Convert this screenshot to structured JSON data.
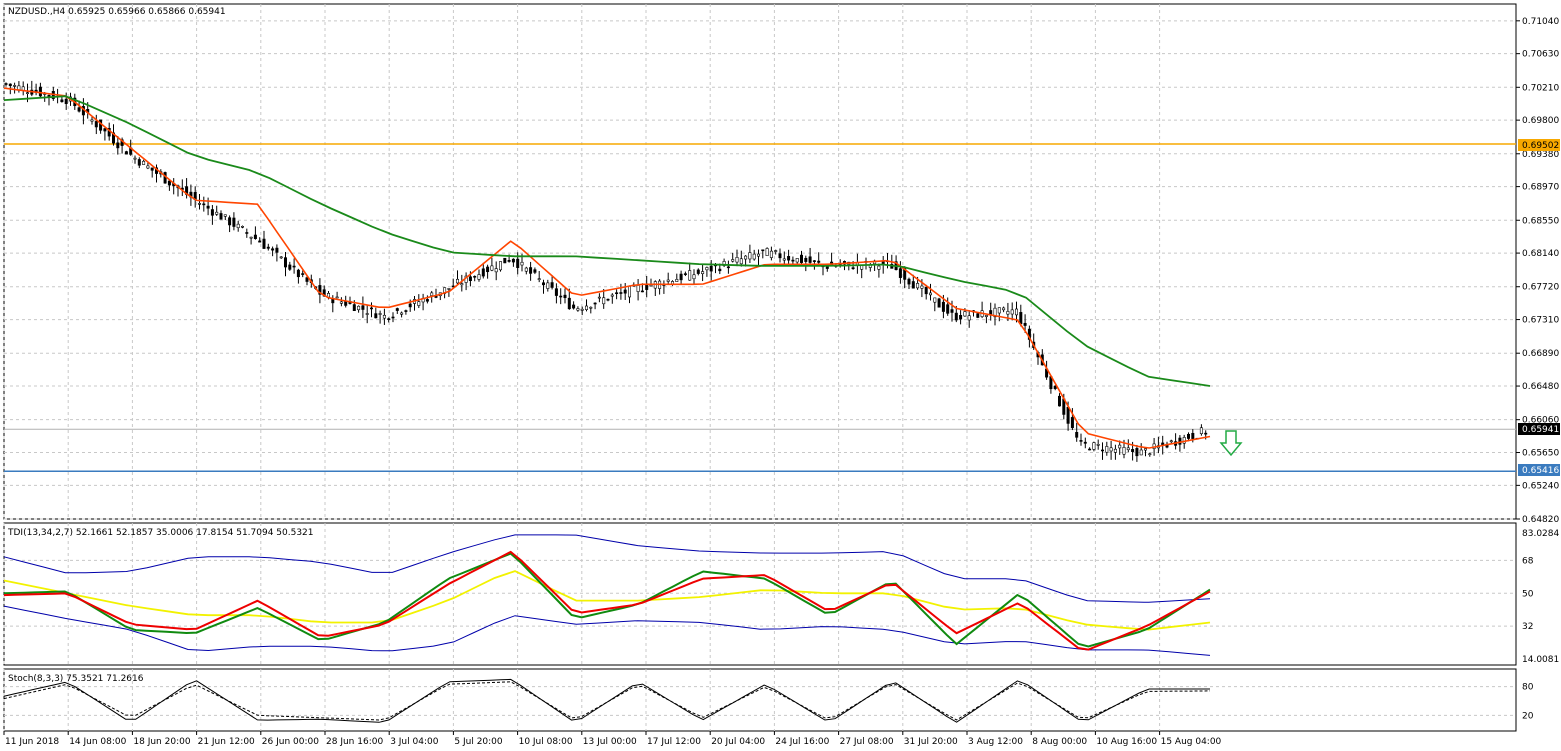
{
  "main_panel": {
    "title": "NZDUSD.,H4  0.65925 0.65966 0.65866 0.65941",
    "price_labels": [
      "0.71040",
      "0.70630",
      "0.70210",
      "0.69800",
      "0.69380",
      "0.68970",
      "0.68550",
      "0.68140",
      "0.67720",
      "0.67310",
      "0.66890",
      "0.66480",
      "0.66060",
      "0.65650",
      "0.65240",
      "0.64820"
    ],
    "tag_gold": "0.69502",
    "tag_current": "0.65941",
    "tag_blue": "0.65416"
  },
  "tdi_panel": {
    "title": "TDI(13,34,2,7) 52.1661 52.1857 35.0006 17.8154 51.7094 50.5321",
    "labels": [
      "83.0284",
      "68",
      "50",
      "32",
      "14.0081"
    ]
  },
  "stoch_panel": {
    "title": "Stoch(8,3,3) 75.3521 71.2616",
    "labels": [
      "80",
      "20"
    ]
  },
  "time_axis": [
    "11 Jun 2018",
    "14 Jun 08:00",
    "18 Jun 20:00",
    "21 Jun 12:00",
    "26 Jun 00:00",
    "28 Jun 16:00",
    "3 Jul 04:00",
    "5 Jul 20:00",
    "10 Jul 08:00",
    "13 Jul 00:00",
    "17 Jul 12:00",
    "20 Jul 04:00",
    "24 Jul 16:00",
    "27 Jul 08:00",
    "31 Jul 20:00",
    "3 Aug 12:00",
    "8 Aug 00:00",
    "10 Aug 16:00",
    "15 Aug 04:00"
  ],
  "colors": {
    "gold_line": "#f7a800",
    "blue_line": "#3a7bbf",
    "fast_ma": "#ff4500",
    "slow_ma": "#1a8a1a",
    "tdi_green": "#108a10",
    "tdi_red": "#ee0000",
    "tdi_yellow": "#f2f200",
    "tdi_band": "#0000aa",
    "down_arrow": "#22aa44"
  },
  "chart_data": [
    {
      "type": "line",
      "title": "NZDUSD.,H4",
      "ylim": [
        0.6482,
        0.7125
      ],
      "x": [
        "11 Jun 2018",
        "14 Jun 08:00",
        "18 Jun 20:00",
        "21 Jun 12:00",
        "26 Jun 00:00",
        "28 Jun 16:00",
        "3 Jul 04:00",
        "5 Jul 20:00",
        "10 Jul 08:00",
        "13 Jul 00:00",
        "17 Jul 12:00",
        "20 Jul 04:00",
        "24 Jul 16:00",
        "27 Jul 08:00",
        "31 Jul 20:00",
        "3 Aug 12:00",
        "8 Aug 00:00",
        "10 Aug 16:00",
        "15 Aug 04:00",
        "16 Aug"
      ],
      "series": [
        {
          "values": [
            0.7025,
            0.7005,
            0.6935,
            0.688,
            0.683,
            0.6762,
            0.6735,
            0.677,
            0.6808,
            0.6745,
            0.677,
            0.679,
            0.6815,
            0.6798,
            0.68,
            0.6735,
            0.6742,
            0.6575,
            0.6565,
            0.6592
          ]
        },
        {
          "values": [
            0.702,
            0.701,
            0.6945,
            0.688,
            0.6875,
            0.676,
            0.6745,
            0.6765,
            0.683,
            0.676,
            0.6775,
            0.6775,
            0.68,
            0.68,
            0.6805,
            0.6745,
            0.673,
            0.659,
            0.657,
            0.6585
          ]
        },
        {
          "values": [
            0.7005,
            0.701,
            0.6975,
            0.6935,
            0.6915,
            0.6875,
            0.684,
            0.6815,
            0.681,
            0.681,
            0.6805,
            0.68,
            0.6798,
            0.6798,
            0.68,
            0.678,
            0.6765,
            0.67,
            0.666,
            0.6648
          ]
        }
      ],
      "hlines": [
        0.69502,
        0.65416
      ],
      "current_price": 0.65941
    },
    {
      "type": "line",
      "title": "TDI(13,34,2,7)",
      "ylim": [
        14.0081,
        83.0284
      ],
      "x": [
        "11 Jun 2018",
        "14 Jun 08:00",
        "18 Jun 20:00",
        "21 Jun 12:00",
        "26 Jun 00:00",
        "28 Jun 16:00",
        "3 Jul 04:00",
        "5 Jul 20:00",
        "10 Jul 08:00",
        "13 Jul 00:00",
        "17 Jul 12:00",
        "20 Jul 04:00",
        "24 Jul 16:00",
        "27 Jul 08:00",
        "31 Jul 20:00",
        "3 Aug 12:00",
        "8 Aug 00:00",
        "10 Aug 16:00",
        "15 Aug 04:00",
        "16 Aug"
      ],
      "series": [
        {
          "values": [
            50,
            51,
            30,
            28,
            42,
            24,
            34,
            58,
            72,
            36,
            44,
            62,
            58,
            38,
            57,
            22,
            50,
            20,
            30,
            52
          ]
        },
        {
          "values": [
            49,
            50,
            33,
            30,
            46,
            26,
            33,
            55,
            73,
            39,
            44,
            58,
            60,
            40,
            56,
            28,
            45,
            18,
            32,
            51
          ]
        },
        {
          "values": [
            57,
            50,
            43,
            38,
            38,
            34,
            34,
            46,
            63,
            46,
            46,
            48,
            52,
            50,
            50,
            41,
            42,
            33,
            30,
            34
          ]
        },
        {
          "values": [
            70,
            61,
            62,
            70,
            70,
            67,
            60,
            72,
            82,
            82,
            76,
            73,
            72,
            72,
            73,
            58,
            58,
            46,
            45,
            47
          ]
        },
        {
          "values": [
            43,
            36,
            30,
            18,
            21,
            21,
            18,
            22,
            38,
            33,
            35,
            34,
            30,
            32,
            30,
            22,
            24,
            19,
            19,
            16
          ]
        }
      ],
      "levels": [
        68,
        50,
        32
      ]
    },
    {
      "type": "line",
      "title": "Stoch(8,3,3)",
      "ylim": [
        0,
        100
      ],
      "levels": [
        80,
        20
      ],
      "series": [
        {
          "values": [
            60,
            90,
            5,
            95,
            10,
            12,
            5,
            90,
            95,
            5,
            90,
            10,
            85,
            5,
            92,
            5,
            95,
            5,
            75,
            75
          ]
        },
        {
          "values": [
            55,
            85,
            15,
            85,
            20,
            15,
            10,
            85,
            90,
            10,
            85,
            15,
            80,
            10,
            88,
            10,
            90,
            10,
            70,
            71
          ]
        }
      ]
    }
  ]
}
